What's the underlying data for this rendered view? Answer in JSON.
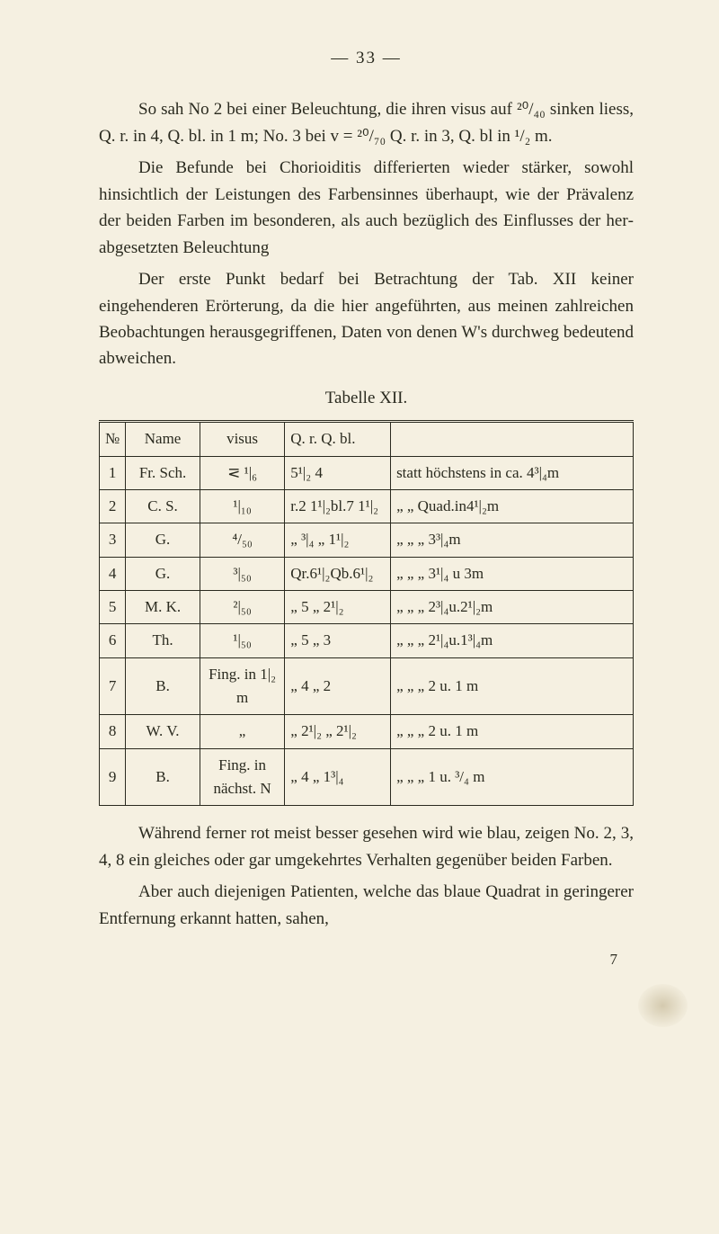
{
  "page_number": "— 33 —",
  "p1": "So sah No 2 bei einer Beleuchtung, die ihren visus auf ²⁰/₄₀ sinken liess, Q. r. in 4, Q. bl. in 1 m; No. 3 bei v = ²⁰/₇₀ Q. r. in 3, Q. bl in ¹/₂ m.",
  "p2": "Die Befunde bei Chorioiditis differierten wieder stärker, sowohl hinsichtlich der Leistungen des Farben­sinnes überhaupt, wie der Prävalenz der beiden Farben im besonderen, als auch bezüglich des Einflusses der her­abgesetzten Beleuchtung",
  "p3": "Der erste Punkt bedarf bei Betrachtung der Tab. XII keiner eingehenderen Erörterung, da die hier angeführten, aus meinen zahlreichen Beobachtungen herausgegriffenen, Daten von denen W's durchweg bedeutend abweichen.",
  "table_caption": "Tabelle XII.",
  "head": {
    "c1": "№",
    "c2": "Name",
    "c3": "visus",
    "c4": "Q. r.  Q. bl.",
    "c5": ""
  },
  "rows": [
    {
      "c1": "1",
      "c2": "Fr. Sch.",
      "c3": "⋜ ¹|₆",
      "c4": "5¹|₂ 4",
      "c5": "statt höchstens in ca. 4³|₄m"
    },
    {
      "c1": "2",
      "c2": "C. S.",
      "c3": "¹|₁₀",
      "c4": "r.2 1¹|₂bl.7 1¹|₂",
      "c5": "„      „    Quad.in4¹|₂m"
    },
    {
      "c1": "3",
      "c2": "G.",
      "c3": "⁴/₅₀",
      "c4": "„  ³|₄  „ 1¹|₂",
      "c5": "„      „      „    3³|₄m"
    },
    {
      "c1": "4",
      "c2": "G.",
      "c3": "³|₅₀",
      "c4": "Qr.6¹|₂Qb.6¹|₂",
      "c5": "„      „      „    3¹|₄ u 3m"
    },
    {
      "c1": "5",
      "c2": "M. K.",
      "c3": "²|₅₀",
      "c4": "„ 5   „ 2¹|₂",
      "c5": "„      „      „    2³|₄u.2¹|₂m"
    },
    {
      "c1": "6",
      "c2": "Th.",
      "c3": "¹|₅₀",
      "c4": "„ 5   „ 3",
      "c5": "„      „      „    2¹|₄u.1³|₄m"
    },
    {
      "c1": "7",
      "c2": "B.",
      "c3": "Fing. in 1|₂ m",
      "c4": "„ 4   „ 2",
      "c5": "„      „      „    2 u. 1 m"
    },
    {
      "c1": "8",
      "c2": "W. V.",
      "c3": "„",
      "c4": "„ 2¹|₂ „ 2¹|₂",
      "c5": "„      „      „    2 u. 1 m"
    },
    {
      "c1": "9",
      "c2": "B.",
      "c3": "Fing. in nächst. N",
      "c4": "„ 4   „ 1³|₄",
      "c5": "„      „      „    1 u. ³/₄ m"
    }
  ],
  "p4": "Während ferner rot meist besser gesehen wird wie blau, zeigen No. 2, 3, 4, 8 ein gleiches oder gar um­gekehrtes Verhalten gegenüber beiden Farben.",
  "p5": "Aber auch diejenigen Patienten, welche das blaue Quadrat in geringerer Entfernung erkannt hatten, sahen,",
  "footer": "7"
}
